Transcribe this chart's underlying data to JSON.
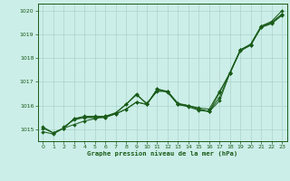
{
  "title": "Graphe pression niveau de la mer (hPa)",
  "bg_color": "#cceee8",
  "grid_color": "#aad4cc",
  "line_color": "#1a5c1a",
  "xlim": [
    -0.5,
    23.5
  ],
  "ylim": [
    1014.5,
    1020.3
  ],
  "yticks": [
    1015,
    1016,
    1017,
    1018,
    1019,
    1020
  ],
  "xticks": [
    0,
    1,
    2,
    3,
    4,
    5,
    6,
    7,
    8,
    9,
    10,
    11,
    12,
    13,
    14,
    15,
    16,
    17,
    18,
    19,
    20,
    21,
    22,
    23
  ],
  "lines": [
    {
      "x": [
        0,
        1,
        2,
        3,
        4,
        5,
        6,
        7,
        8,
        9,
        10,
        11,
        12,
        13,
        14,
        15,
        16,
        17,
        18,
        19,
        20,
        21,
        22,
        23
      ],
      "y": [
        1014.9,
        1014.8,
        1015.05,
        1015.2,
        1015.35,
        1015.45,
        1015.55,
        1015.65,
        1015.85,
        1016.15,
        1016.05,
        1016.7,
        1016.55,
        1016.05,
        1016.0,
        1015.9,
        1015.85,
        1016.6,
        1017.35,
        1018.35,
        1018.55,
        1019.35,
        1019.55,
        1020.0
      ]
    },
    {
      "x": [
        0,
        1,
        2,
        3,
        4,
        5,
        6,
        7,
        8,
        9,
        10,
        11,
        12,
        13,
        14,
        15,
        16,
        17,
        18,
        19,
        20,
        21,
        22,
        23
      ],
      "y": [
        1015.1,
        1014.85,
        1015.05,
        1015.45,
        1015.55,
        1015.55,
        1015.55,
        1015.7,
        1016.05,
        1016.45,
        1016.1,
        1016.6,
        1016.6,
        1016.05,
        1016.0,
        1015.85,
        1015.75,
        1016.55,
        1017.4,
        1018.35,
        1018.6,
        1019.35,
        1019.5,
        1019.85
      ]
    },
    {
      "x": [
        0,
        1,
        2,
        3,
        4,
        5,
        6,
        7,
        8,
        9,
        10,
        11,
        12,
        13,
        14,
        15,
        16,
        17,
        18,
        19,
        20,
        21,
        22,
        23
      ],
      "y": [
        1015.05,
        1014.85,
        1015.05,
        1015.45,
        1015.5,
        1015.5,
        1015.5,
        1015.68,
        1016.05,
        1016.5,
        1016.05,
        1016.65,
        1016.6,
        1016.05,
        1015.95,
        1015.8,
        1015.75,
        1016.2,
        1017.38,
        1018.3,
        1018.55,
        1019.3,
        1019.5,
        1019.85
      ]
    },
    {
      "x": [
        2,
        3,
        4,
        5,
        6,
        7,
        8,
        9,
        10,
        11,
        12,
        13,
        14,
        15,
        16,
        17,
        18,
        19,
        20,
        21,
        22,
        23
      ],
      "y": [
        1015.1,
        1015.4,
        1015.5,
        1015.5,
        1015.5,
        1015.65,
        1015.85,
        1016.15,
        1016.05,
        1016.7,
        1016.6,
        1016.1,
        1016.0,
        1015.85,
        1015.75,
        1016.35,
        1017.38,
        1018.35,
        1018.55,
        1019.3,
        1019.45,
        1019.8
      ]
    }
  ]
}
